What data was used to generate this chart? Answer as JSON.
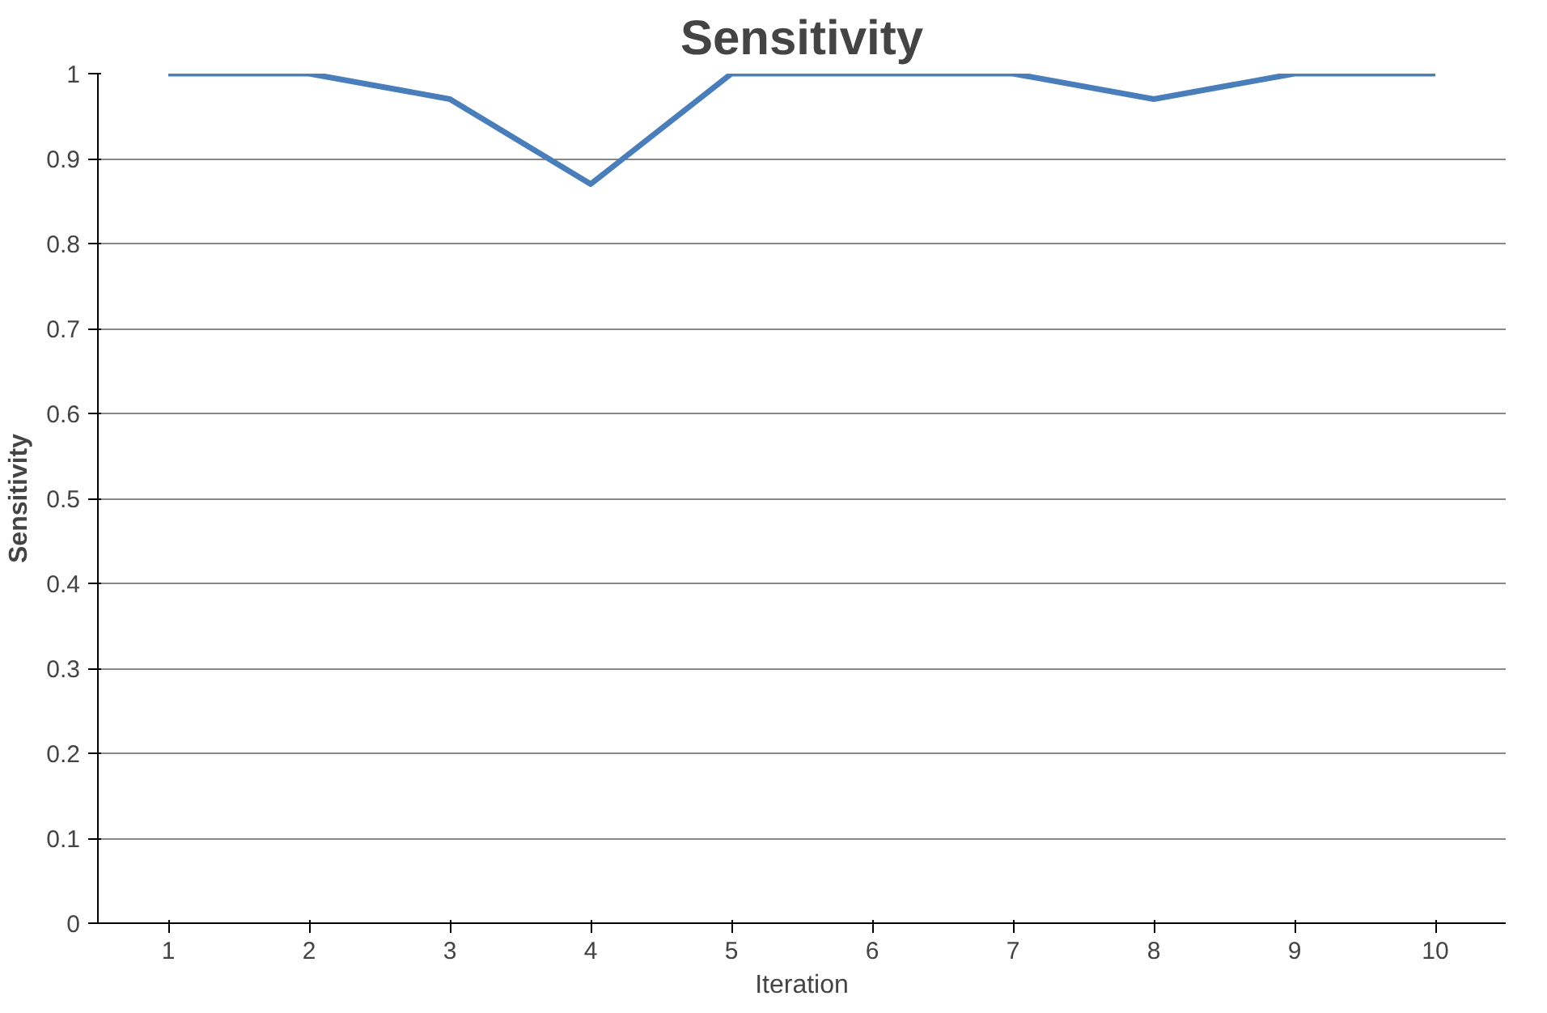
{
  "chart_data": {
    "type": "line",
    "title": "Sensitivity",
    "xlabel": "Iteration",
    "ylabel": "Sensitivity",
    "categories": [
      "1",
      "2",
      "3",
      "4",
      "5",
      "6",
      "7",
      "8",
      "9",
      "10"
    ],
    "series": [
      {
        "color": "#4a7ebb",
        "values": [
          1,
          1,
          0.97,
          0.87,
          1,
          1,
          1,
          0.97,
          1,
          1
        ]
      }
    ],
    "ylim": [
      0,
      1
    ],
    "yticks": [
      0,
      0.1,
      0.2,
      0.3,
      0.4,
      0.5,
      0.6,
      0.7,
      0.8,
      0.9,
      1
    ],
    "grid": "y",
    "marker": "none",
    "line_style": "solid"
  }
}
